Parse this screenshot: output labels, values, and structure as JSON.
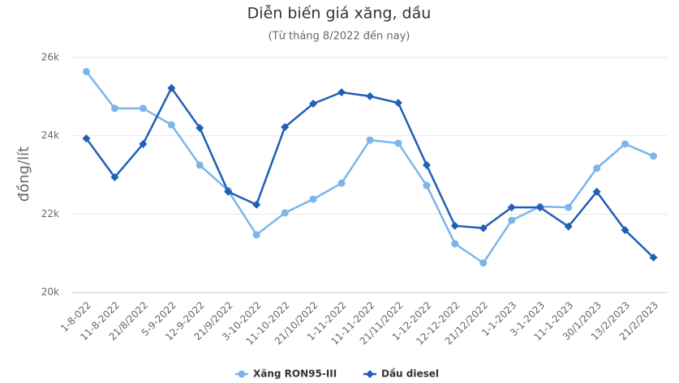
{
  "chart_data": {
    "type": "line",
    "title": "Diễn biến giá xăng, dầu",
    "subtitle": "(Từ tháng 8/2022 đến nay)",
    "y_label": "đồng/lít",
    "categories": [
      "1-8-022",
      "11-8-2022",
      "21/8/2022",
      "5-9-2022",
      "12-9-2022",
      "21/9/2022",
      "3-10-2022",
      "11-10-2022",
      "21/10/2022",
      "1-11-2022",
      "11-11-2022",
      "21/11/2022",
      "1-12-2022",
      "12-12-2022",
      "21/12/2022",
      "1-1-2023",
      "3-1-2023",
      "11-1-2023",
      "30/1/2023",
      "13/2/2023",
      "21/2/2023"
    ],
    "series": [
      {
        "name": "Xăng RON95-III",
        "color": "#7cb5ec",
        "marker": "circle",
        "values": [
          25640,
          24700,
          24700,
          24280,
          23250,
          22600,
          21470,
          22030,
          22380,
          22790,
          23890,
          23810,
          22730,
          21240,
          20750,
          21840,
          22190,
          22170,
          23170,
          23790,
          23480
        ]
      },
      {
        "name": "Dầu diesel",
        "color": "#1f5fb5",
        "marker": "diamond",
        "values": [
          23930,
          22940,
          23790,
          25220,
          24200,
          22570,
          22240,
          24220,
          24820,
          25110,
          25010,
          24840,
          23250,
          21700,
          21640,
          22170,
          22170,
          21680,
          22570,
          21590,
          20890
        ]
      }
    ],
    "ylim": [
      20000,
      26000
    ],
    "yticks": [
      {
        "value": 20000,
        "label": "20k"
      },
      {
        "value": 22000,
        "label": "22k"
      },
      {
        "value": 24000,
        "label": "24k"
      },
      {
        "value": 26000,
        "label": "26k"
      }
    ],
    "grid": true,
    "legend": "bottom"
  }
}
